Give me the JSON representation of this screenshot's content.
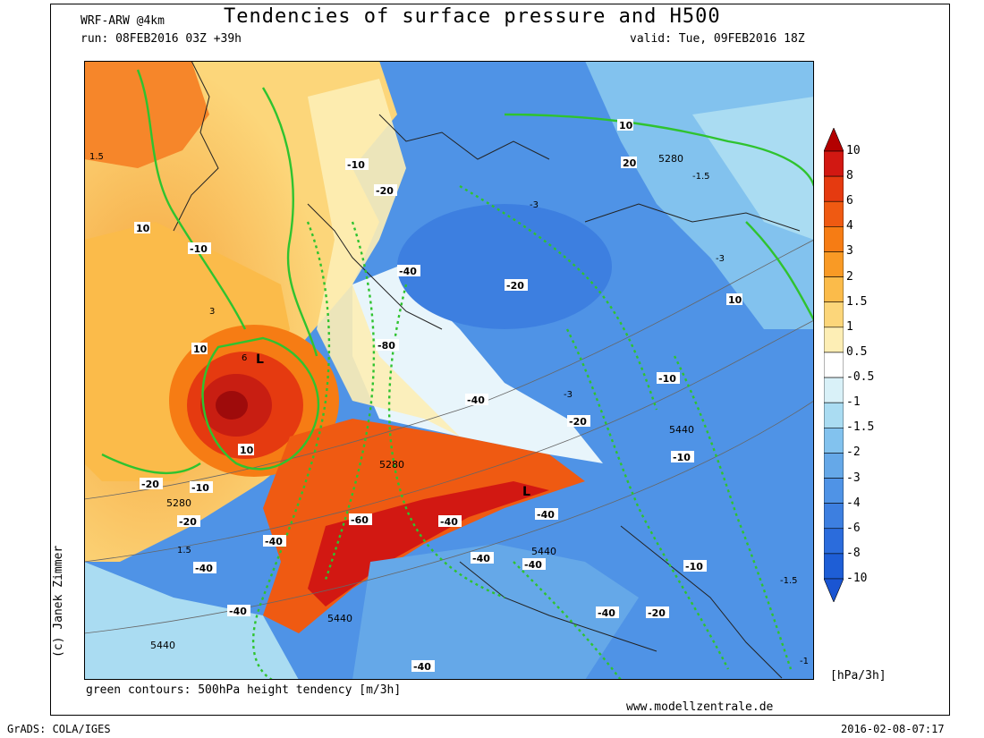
{
  "title": "Tendencies of surface pressure and H500",
  "model": "WRF-ARW @4km",
  "run": "run: 08FEB2016 03Z +39h",
  "valid": "valid: Tue, 09FEB2016 18Z",
  "author": "(c) Janek Zimmer",
  "contour_note": "green contours: 500hPa height tendency [m/3h]",
  "website": "www.modellzentrale.de",
  "units": "[hPa/3h]",
  "grads": "GrADS: COLA/IGES",
  "timestamp": "2016-02-08-07:17",
  "legend": {
    "levels": [
      "10",
      "8",
      "6",
      "4",
      "3",
      "2",
      "1.5",
      "1",
      "0.5",
      "-0.5",
      "-1",
      "-1.5",
      "-2",
      "-3",
      "-4",
      "-6",
      "-8",
      "-10"
    ],
    "colors": [
      "#b30000",
      "#d21812",
      "#e53a10",
      "#ef5a12",
      "#f67c14",
      "#f99a25",
      "#fbbb4a",
      "#fcd67a",
      "#fdeeb5",
      "#ffffff",
      "#d9f1f8",
      "#aadcf2",
      "#82c2ee",
      "#65a8e8",
      "#4f93e6",
      "#3d7fe0",
      "#2b6cdc",
      "#1e5ed6",
      "#1a55d2"
    ]
  },
  "map_labels": [
    {
      "text": "10",
      "bold": true
    },
    {
      "text": "-10",
      "bold": true
    },
    {
      "text": "10",
      "bold": true
    },
    {
      "text": "20",
      "bold": true
    },
    {
      "text": "5280",
      "bold": false
    },
    {
      "text": "-10",
      "bold": true
    },
    {
      "text": "-20",
      "bold": true
    },
    {
      "text": "10",
      "bold": true
    },
    {
      "text": "-10",
      "bold": true
    },
    {
      "text": "-40",
      "bold": true
    },
    {
      "text": "-20",
      "bold": true
    },
    {
      "text": "10",
      "bold": true
    },
    {
      "text": "-80",
      "bold": true
    },
    {
      "text": "10",
      "bold": true
    },
    {
      "text": "-40",
      "bold": true
    },
    {
      "text": "-10",
      "bold": true
    },
    {
      "text": "-20",
      "bold": true
    },
    {
      "text": "5440",
      "bold": false
    },
    {
      "text": "10",
      "bold": true
    },
    {
      "text": "5280",
      "bold": false
    },
    {
      "text": "-10",
      "bold": true
    },
    {
      "text": "-20",
      "bold": true
    },
    {
      "text": "-10",
      "bold": true
    },
    {
      "text": "5280",
      "bold": false
    },
    {
      "text": "-20",
      "bold": true
    },
    {
      "text": "-40",
      "bold": true
    },
    {
      "text": "-60",
      "bold": true
    },
    {
      "text": "-40",
      "bold": true
    },
    {
      "text": "-40",
      "bold": true
    },
    {
      "text": "-40",
      "bold": true
    },
    {
      "text": "5440",
      "bold": false
    },
    {
      "text": "-40",
      "bold": true
    },
    {
      "text": "-40",
      "bold": true
    },
    {
      "text": "-10",
      "bold": true
    },
    {
      "text": "-40",
      "bold": true
    },
    {
      "text": "5440",
      "bold": false
    },
    {
      "text": "-40",
      "bold": true
    },
    {
      "text": "-20",
      "bold": true
    },
    {
      "text": "5440",
      "bold": false
    },
    {
      "text": "-40",
      "bold": true
    },
    {
      "text": "-1.5",
      "bold": false
    },
    {
      "text": "-3",
      "bold": false
    },
    {
      "text": "-3",
      "bold": false
    },
    {
      "text": "-3",
      "bold": false
    },
    {
      "text": "-1.5",
      "bold": false
    },
    {
      "text": "1.5",
      "bold": false
    },
    {
      "text": "3",
      "bold": false
    },
    {
      "text": "6",
      "bold": false
    },
    {
      "text": "1.5",
      "bold": false
    },
    {
      "text": "-1",
      "bold": false
    }
  ]
}
